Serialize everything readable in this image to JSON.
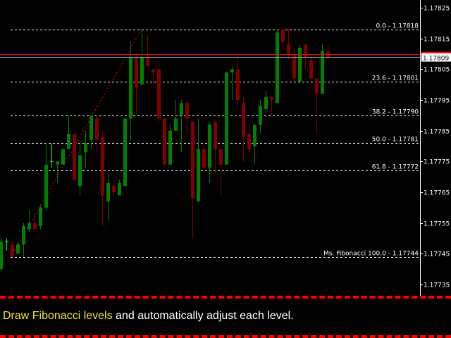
{
  "chart_data": {
    "type": "candlestick",
    "title": "",
    "colors": {
      "bull": "#008000",
      "bear": "#800000",
      "doji": "#00ff00",
      "background": "#000000",
      "fib_line": "#ffffff",
      "trend_line": "#ff0000",
      "ask_line": "#ff0000",
      "bid_line": "#8090a0",
      "axis": "#ffffff"
    },
    "ylim": [
      1.17733,
      1.17828
    ],
    "y_ticks": [
      "1.17825",
      "1.17815",
      "1.17805",
      "1.17795",
      "1.17785",
      "1.17775",
      "1.17765",
      "1.17755",
      "1.17745",
      "1.17735"
    ],
    "bid_price": "1.17809",
    "ask_price": 1.1781,
    "fib_levels": [
      {
        "label": "0.0 - 1.17818",
        "price": 1.17818
      },
      {
        "label": "23.6 - 1.17801",
        "price": 1.17801
      },
      {
        "label": "38.2 - 1.17790",
        "price": 1.1779
      },
      {
        "label": "50.0 - 1.17781",
        "price": 1.17781
      },
      {
        "label": "61.8 - 1.17772",
        "price": 1.17772
      },
      {
        "label": "Ms. Fibonacci  100.0 - 1.17744",
        "price": 1.17744
      }
    ],
    "trend_line": {
      "from_bar": 2,
      "from_price": 1.17744,
      "to_bar": 25,
      "to_price": 1.17818
    },
    "candles_ohlc": [
      [
        1.1774,
        1.1775,
        1.17739,
        1.17749
      ],
      [
        1.17749,
        1.1775,
        1.17746,
        1.17749
      ],
      [
        1.17748,
        1.17749,
        1.17744,
        1.17744
      ],
      [
        1.17745,
        1.17749,
        1.17745,
        1.17748
      ],
      [
        1.17748,
        1.17755,
        1.17744,
        1.17754
      ],
      [
        1.17753,
        1.17759,
        1.17752,
        1.17755
      ],
      [
        1.17755,
        1.17758,
        1.17753,
        1.17753
      ],
      [
        1.17754,
        1.17761,
        1.17753,
        1.1776
      ],
      [
        1.1776,
        1.17781,
        1.17759,
        1.17774
      ],
      [
        1.17775,
        1.17781,
        1.17773,
        1.17775
      ],
      [
        1.17774,
        1.17775,
        1.17768,
        1.17775
      ],
      [
        1.17774,
        1.17779,
        1.17774,
        1.17779
      ],
      [
        1.17779,
        1.1779,
        1.17779,
        1.17784
      ],
      [
        1.17784,
        1.17784,
        1.17769,
        1.17769
      ],
      [
        1.17767,
        1.17782,
        1.17764,
        1.17777
      ],
      [
        1.17778,
        1.17785,
        1.17773,
        1.17781
      ],
      [
        1.17782,
        1.1779,
        1.17779,
        1.1779
      ],
      [
        1.17789,
        1.1779,
        1.17778,
        1.17782
      ],
      [
        1.17783,
        1.17785,
        1.17754,
        1.17764
      ],
      [
        1.17762,
        1.17771,
        1.17756,
        1.17768
      ],
      [
        1.17767,
        1.17769,
        1.17764,
        1.17765
      ],
      [
        1.17764,
        1.17769,
        1.17764,
        1.17768
      ],
      [
        1.17767,
        1.17789,
        1.17767,
        1.17789
      ],
      [
        1.17789,
        1.17814,
        1.17782,
        1.17809
      ],
      [
        1.17809,
        1.1781,
        1.1779,
        1.17799
      ],
      [
        1.178,
        1.17818,
        1.178,
        1.17809
      ],
      [
        1.17809,
        1.17816,
        1.17806,
        1.17806
      ],
      [
        1.17805,
        1.17805,
        1.17799,
        1.17804
      ],
      [
        1.17805,
        1.17807,
        1.17788,
        1.17789
      ],
      [
        1.17789,
        1.17789,
        1.17774,
        1.17774
      ],
      [
        1.17774,
        1.17787,
        1.17774,
        1.17785
      ],
      [
        1.17785,
        1.17795,
        1.17785,
        1.17789
      ],
      [
        1.1779,
        1.17795,
        1.17778,
        1.17794
      ],
      [
        1.17794,
        1.17795,
        1.17784,
        1.17789
      ],
      [
        1.17788,
        1.17788,
        1.1775,
        1.17763
      ],
      [
        1.17762,
        1.17789,
        1.17762,
        1.17779
      ],
      [
        1.17779,
        1.1778,
        1.17773,
        1.17773
      ],
      [
        1.17773,
        1.17788,
        1.17768,
        1.17787
      ],
      [
        1.17788,
        1.17788,
        1.17771,
        1.17779
      ],
      [
        1.17779,
        1.17779,
        1.17764,
        1.17774
      ],
      [
        1.17774,
        1.17804,
        1.17774,
        1.17804
      ],
      [
        1.17804,
        1.17806,
        1.17795,
        1.17805
      ],
      [
        1.17805,
        1.17809,
        1.17793,
        1.17795
      ],
      [
        1.17794,
        1.17796,
        1.17775,
        1.17783
      ],
      [
        1.17784,
        1.17787,
        1.17778,
        1.17779
      ],
      [
        1.1778,
        1.17787,
        1.17774,
        1.17787
      ],
      [
        1.17787,
        1.17795,
        1.17784,
        1.17793
      ],
      [
        1.17792,
        1.17798,
        1.17791,
        1.17796
      ],
      [
        1.17796,
        1.17796,
        1.1779,
        1.17795
      ],
      [
        1.17794,
        1.17818,
        1.17794,
        1.17817
      ],
      [
        1.17818,
        1.17818,
        1.17811,
        1.17814
      ],
      [
        1.17813,
        1.17818,
        1.17808,
        1.1781
      ],
      [
        1.1781,
        1.17812,
        1.17801,
        1.17802
      ],
      [
        1.17801,
        1.17813,
        1.17801,
        1.17812
      ],
      [
        1.17813,
        1.17813,
        1.17805,
        1.17809
      ],
      [
        1.17808,
        1.17809,
        1.17801,
        1.17802
      ],
      [
        1.17802,
        1.17802,
        1.17784,
        1.17797
      ],
      [
        1.17797,
        1.17813,
        1.17797,
        1.17811
      ],
      [
        1.17811,
        1.17813,
        1.17808,
        1.17809
      ]
    ]
  },
  "banner": {
    "highlight": "Draw Fibonacci levels",
    "rest": " and automatically adjust each level."
  }
}
